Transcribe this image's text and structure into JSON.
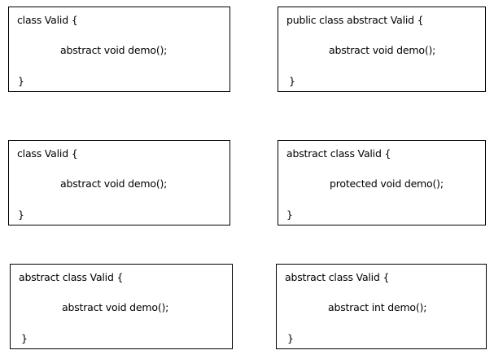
{
  "boxes": [
    {
      "line1": "class Valid {",
      "line2": "abstract void demo();",
      "line3": "}"
    },
    {
      "line1": "public class abstract Valid {",
      "line2": "abstract void demo();",
      "line3": "}"
    },
    {
      "line1": "class Valid {",
      "line2": "abstract void demo();",
      "line3": "}"
    },
    {
      "line1": "abstract class Valid {",
      "line2": "protected void demo();",
      "line3": "}"
    },
    {
      "line1": "abstract class Valid {",
      "line2": "abstract void demo();",
      "line3": "}"
    },
    {
      "line1": "abstract class Valid {",
      "line2": "abstract int demo();",
      "line3": "}"
    }
  ]
}
